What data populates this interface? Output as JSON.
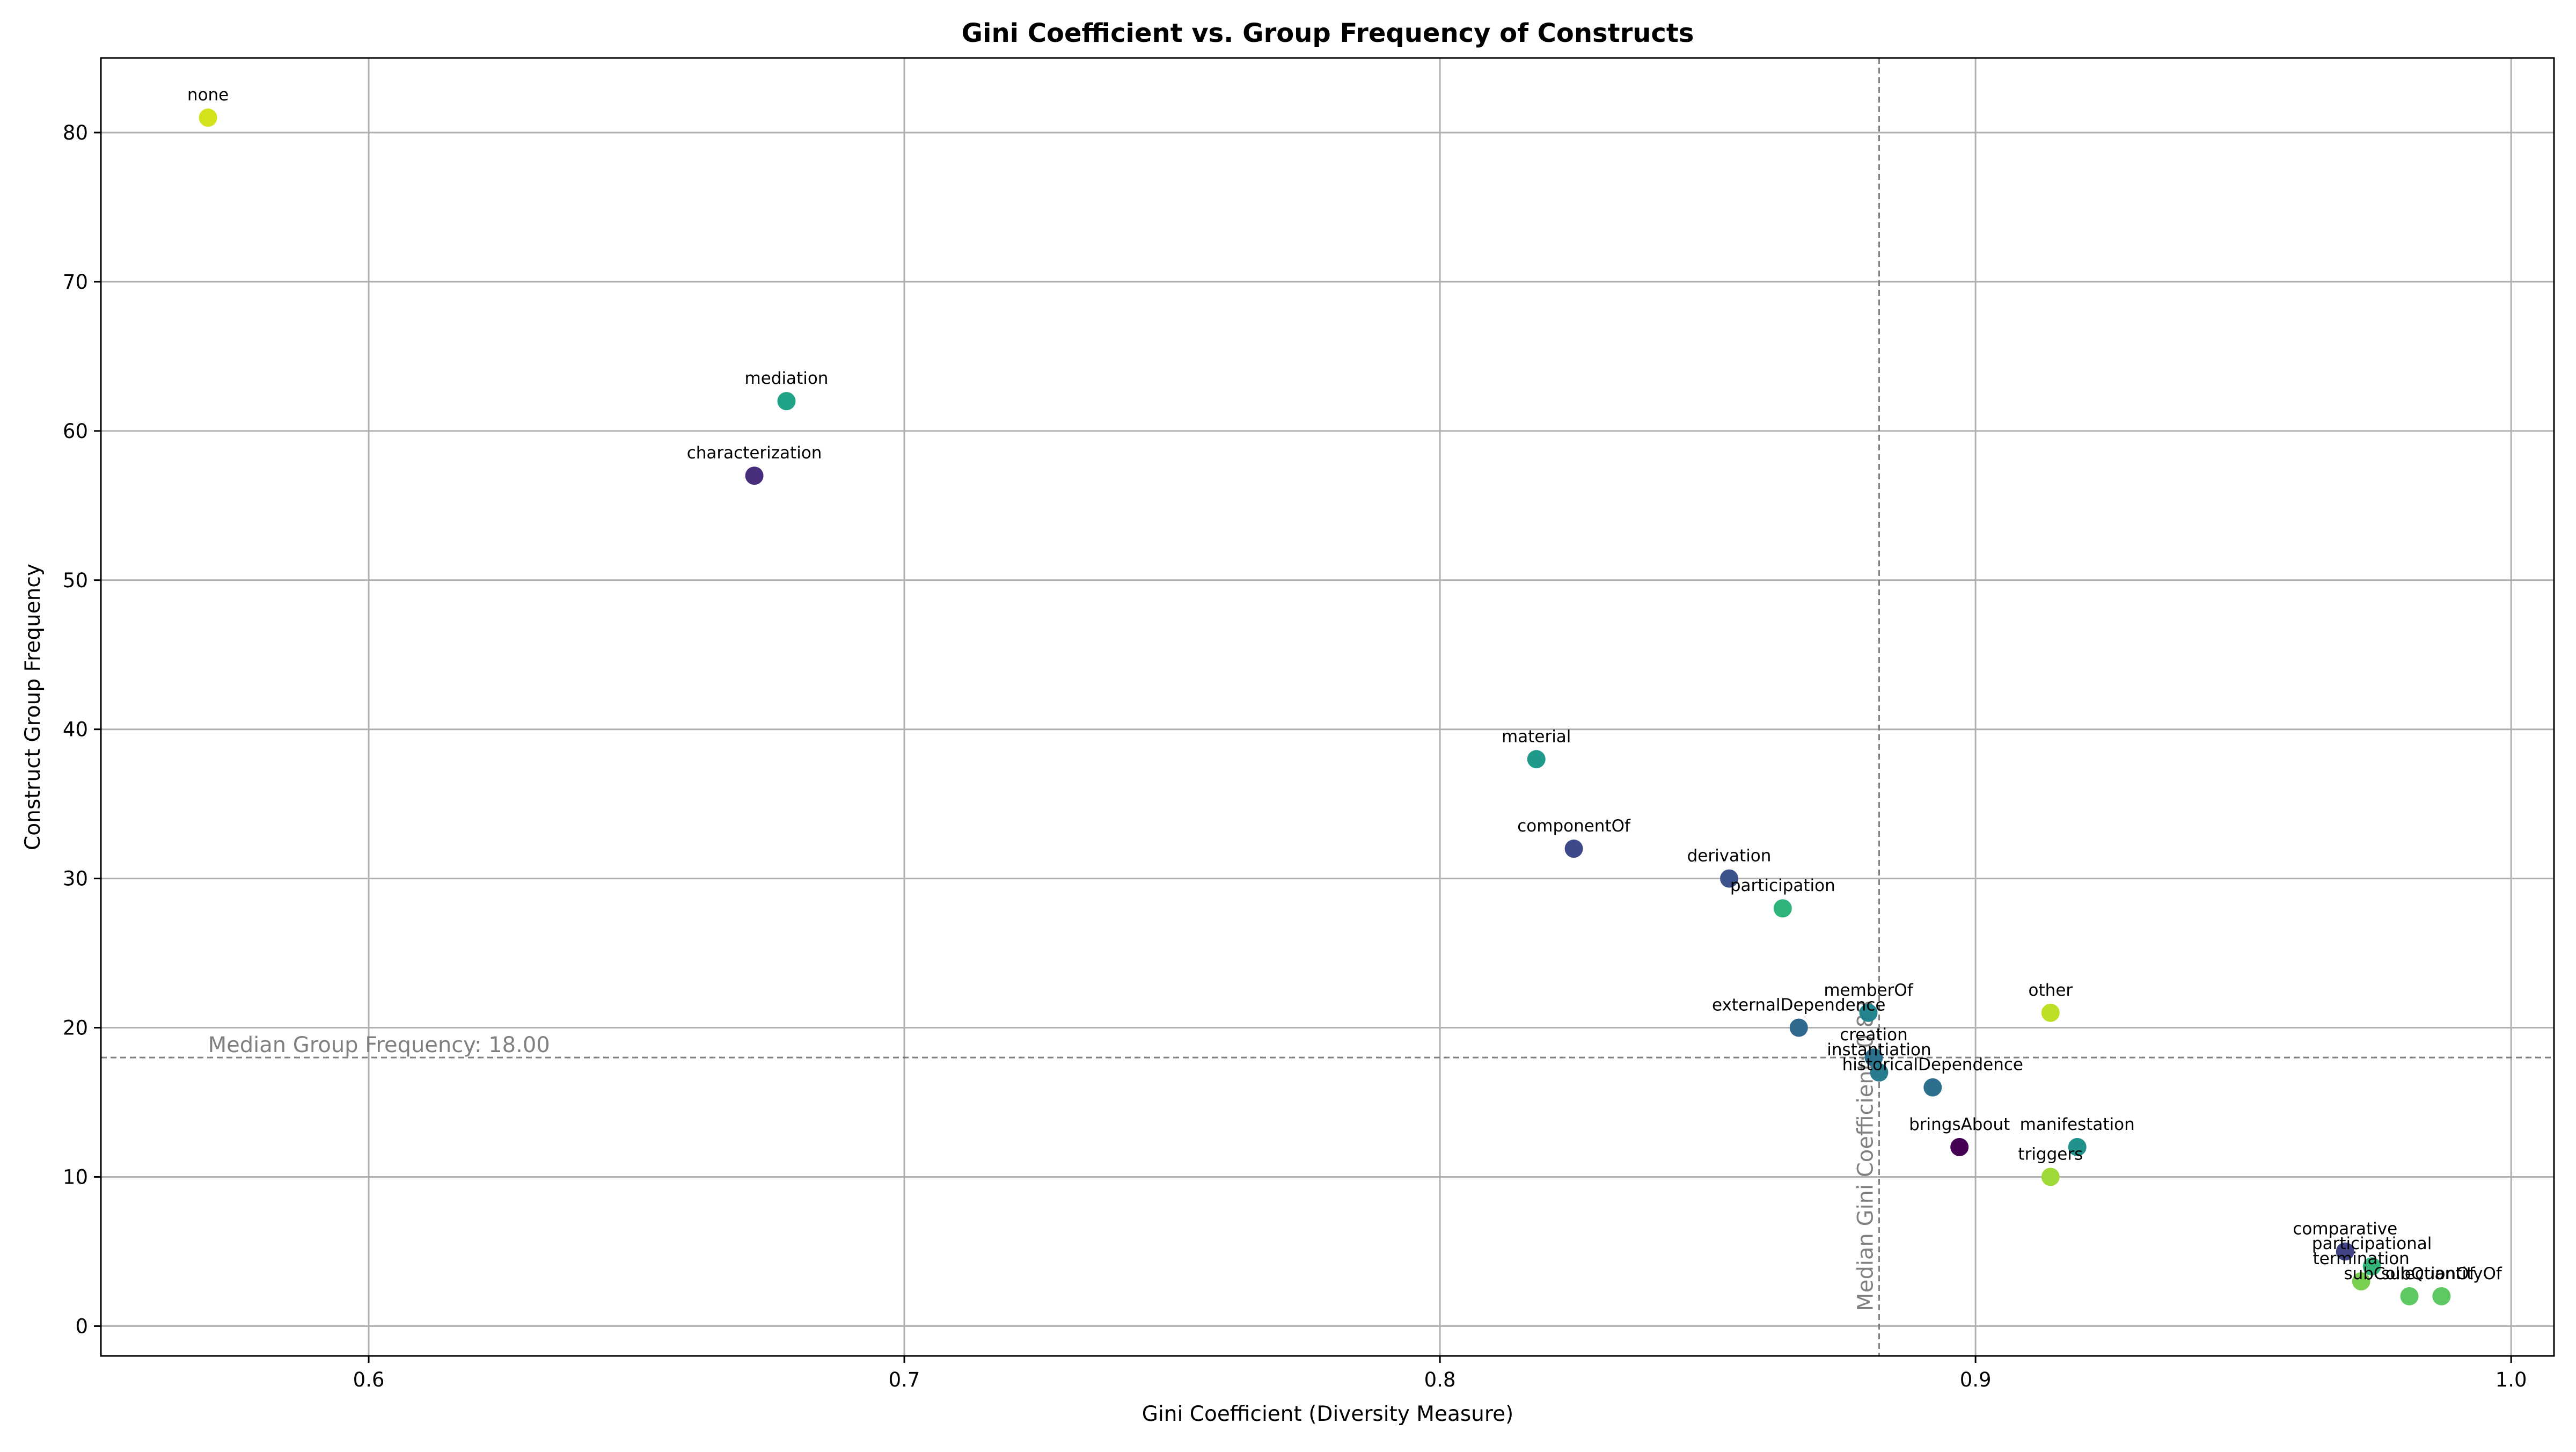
{
  "chart_data": {
    "type": "scatter",
    "title": "Gini Coefficient vs. Group Frequency of Constructs",
    "xlabel": "Gini Coefficient (Diversity Measure)",
    "ylabel": "Construct Group Frequency",
    "xlim": [
      0.55,
      1.008
    ],
    "ylim": [
      -2,
      85
    ],
    "xticks": [
      0.6,
      0.7,
      0.8,
      0.9,
      1.0
    ],
    "xtick_labels": [
      "0.6",
      "0.7",
      "0.8",
      "0.9",
      "1.0"
    ],
    "yticks": [
      0,
      10,
      20,
      30,
      40,
      50,
      60,
      70,
      80
    ],
    "ytick_labels": [
      "0",
      "10",
      "20",
      "30",
      "40",
      "50",
      "60",
      "70",
      "80"
    ],
    "grid": true,
    "reference_lines": {
      "median_frequency": {
        "value": 18.0,
        "label": "Median Group Frequency: 18.00"
      },
      "median_gini": {
        "value": 0.882,
        "label": "Median Gini Coefficient: 0.88"
      }
    },
    "points": [
      {
        "label": "none",
        "x": 0.57,
        "y": 81,
        "color": "#d2e21b",
        "label_color": "#0000ff"
      },
      {
        "label": "mediation",
        "x": 0.678,
        "y": 62,
        "color": "#20a386",
        "label_color": "#000000"
      },
      {
        "label": "characterization",
        "x": 0.672,
        "y": 57,
        "color": "#472d7b",
        "label_color": "#000000"
      },
      {
        "label": "material",
        "x": 0.818,
        "y": 38,
        "color": "#1f9a8a",
        "label_color": "#000000"
      },
      {
        "label": "componentOf",
        "x": 0.825,
        "y": 32,
        "color": "#3e4989",
        "label_color": "#000000"
      },
      {
        "label": "derivation",
        "x": 0.854,
        "y": 30,
        "color": "#3b528b",
        "label_color": "#000000"
      },
      {
        "label": "participation",
        "x": 0.864,
        "y": 28,
        "color": "#2fb47c",
        "label_color": "#000000"
      },
      {
        "label": "memberOf",
        "x": 0.88,
        "y": 21,
        "color": "#25858e",
        "label_color": "#000000"
      },
      {
        "label": "externalDependence",
        "x": 0.867,
        "y": 20,
        "color": "#31688e",
        "label_color": "#000000"
      },
      {
        "label": "other",
        "x": 0.914,
        "y": 21,
        "color": "#bddf26",
        "label_color": "#ff0000"
      },
      {
        "label": "creation",
        "x": 0.881,
        "y": 18,
        "color": "#2c728e",
        "label_color": "#000000"
      },
      {
        "label": "instantiation",
        "x": 0.882,
        "y": 17,
        "color": "#287c8e",
        "label_color": "#000000"
      },
      {
        "label": "historicalDependence",
        "x": 0.892,
        "y": 16,
        "color": "#2d708e",
        "label_color": "#000000"
      },
      {
        "label": "bringsAbout",
        "x": 0.897,
        "y": 12,
        "color": "#440154",
        "label_color": "#000000"
      },
      {
        "label": "manifestation",
        "x": 0.919,
        "y": 12,
        "color": "#21918c",
        "label_color": "#000000"
      },
      {
        "label": "triggers",
        "x": 0.914,
        "y": 10,
        "color": "#a0da39",
        "label_color": "#000000"
      },
      {
        "label": "comparative",
        "x": 0.969,
        "y": 5,
        "color": "#414487",
        "label_color": "#000000"
      },
      {
        "label": "participational",
        "x": 0.974,
        "y": 4,
        "color": "#35b779",
        "label_color": "#000000"
      },
      {
        "label": "termination",
        "x": 0.972,
        "y": 3,
        "color": "#7ad151",
        "label_color": "#000000"
      },
      {
        "label": "subCollectionOf",
        "x": 0.981,
        "y": 2,
        "color": "#5ec962",
        "label_color": "#000000"
      },
      {
        "label": "subQuantityOf",
        "x": 0.987,
        "y": 2,
        "color": "#5ec962",
        "label_color": "#000000"
      }
    ]
  }
}
